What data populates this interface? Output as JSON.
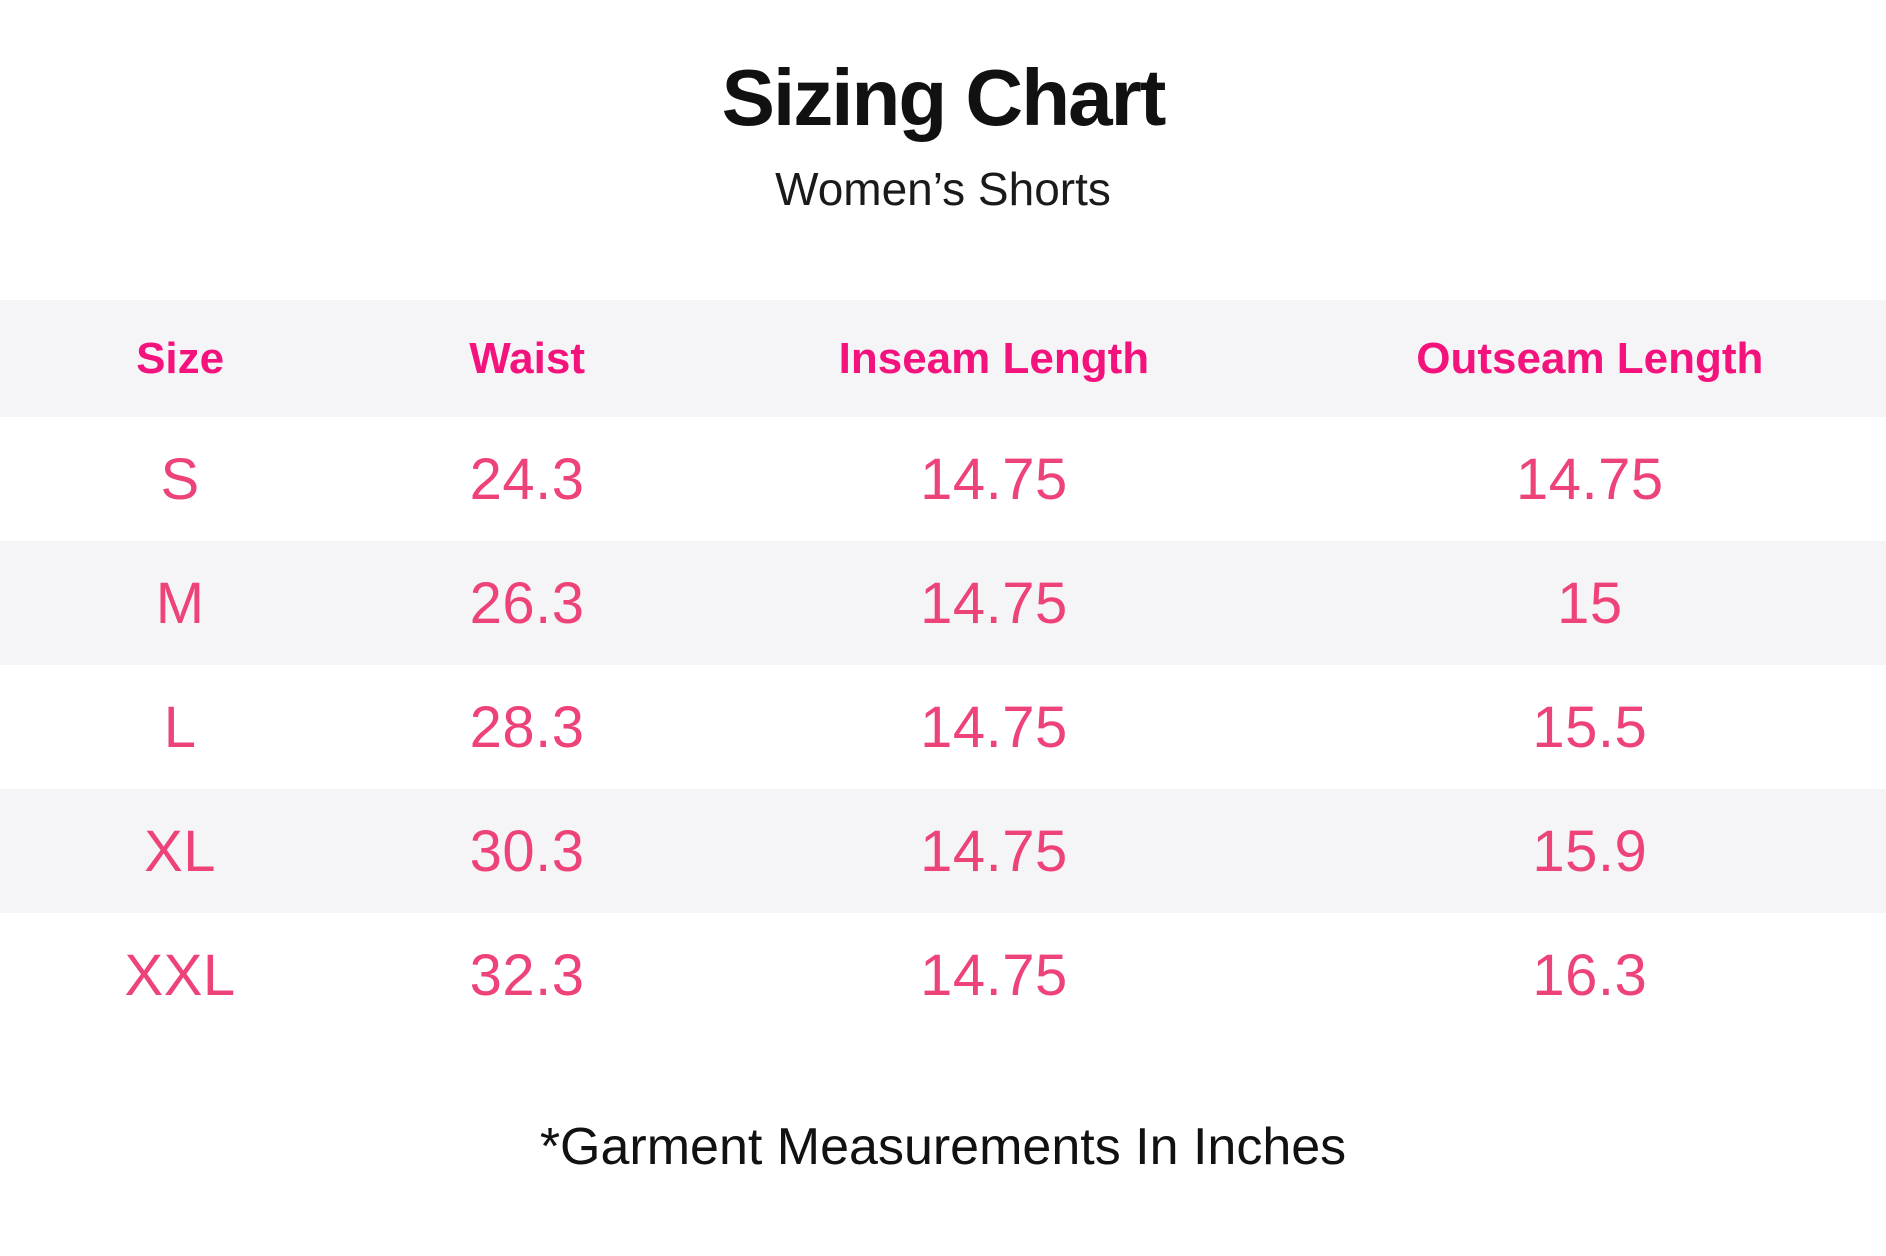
{
  "title": "Sizing Chart",
  "subtitle": "Women’s Shorts",
  "footnote": "*Garment Measurements In Inches",
  "colors": {
    "header_text": "#f4127d",
    "cell_text": "#ee4379",
    "band_gray": "#f5f5f7",
    "title_text": "#111111",
    "background": "#ffffff"
  },
  "table": {
    "headers": [
      "Size",
      "Waist",
      "Inseam Length",
      "Outseam Length"
    ],
    "rows": [
      {
        "size": "S",
        "waist": "24.3",
        "inseam": "14.75",
        "outseam": "14.75"
      },
      {
        "size": "M",
        "waist": "26.3",
        "inseam": "14.75",
        "outseam": "15"
      },
      {
        "size": "L",
        "waist": "28.3",
        "inseam": "14.75",
        "outseam": "15.5"
      },
      {
        "size": "XL",
        "waist": "30.3",
        "inseam": "14.75",
        "outseam": "15.9"
      },
      {
        "size": "XXL",
        "waist": "32.3",
        "inseam": "14.75",
        "outseam": "16.3"
      }
    ]
  },
  "chart_data": {
    "type": "table",
    "title": "Sizing Chart",
    "subtitle": "Women’s Shorts",
    "columns": [
      "Size",
      "Waist",
      "Inseam Length",
      "Outseam Length"
    ],
    "rows": [
      [
        "S",
        24.3,
        14.75,
        14.75
      ],
      [
        "M",
        26.3,
        14.75,
        15
      ],
      [
        "L",
        28.3,
        14.75,
        15.5
      ],
      [
        "XL",
        30.3,
        14.75,
        15.9
      ],
      [
        "XXL",
        32.3,
        14.75,
        16.3
      ]
    ],
    "units": "inches",
    "note": "*Garment Measurements In Inches",
    "layout": {
      "striped": true,
      "stripe_rows": [
        "header",
        "M",
        "XL"
      ],
      "alignment": "center"
    }
  }
}
